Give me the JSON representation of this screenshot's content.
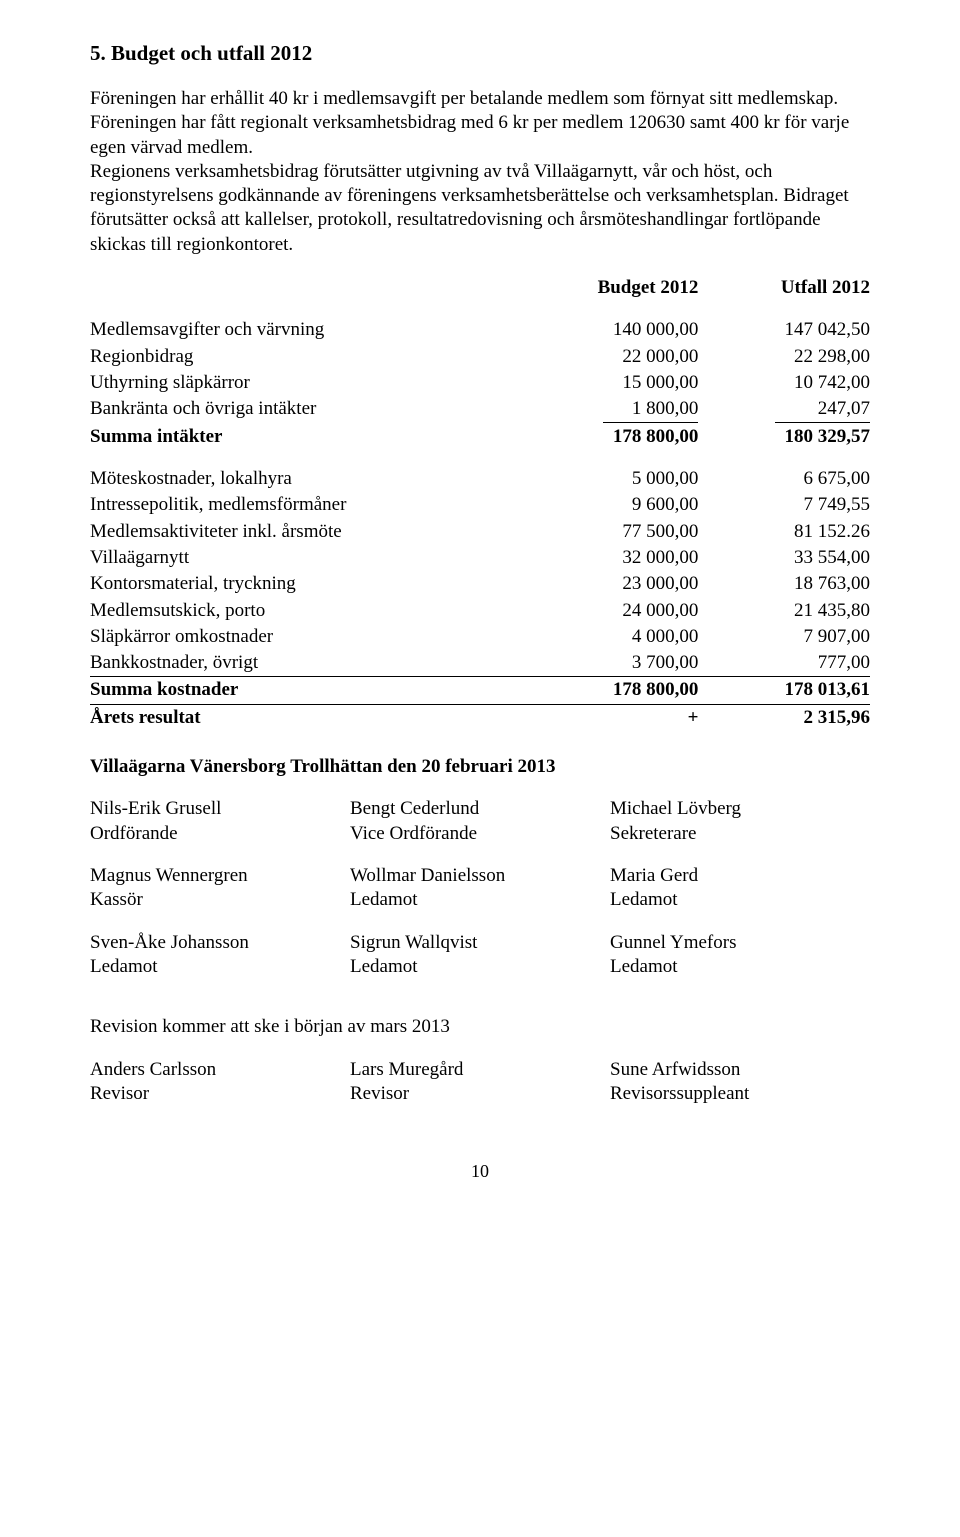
{
  "heading": "5. Budget och utfall 2012",
  "para1": "Föreningen har erhållit 40 kr i medlemsavgift per betalande medlem som förnyat sitt medlemskap.",
  "para2": "Föreningen har fått regionalt verksamhetsbidrag med 6 kr per medlem 120630 samt 400 kr för varje egen värvad medlem.",
  "para3": "Regionens verksamhetsbidrag förutsätter utgivning av två Villaägarnytt, vår och höst, och regionstyrelsens godkännande av föreningens verksamhetsberättelse och verksamhetsplan. Bidraget förutsätter också att kallelser, protokoll, resultatredovisning och årsmöteshandlingar fortlöpande skickas till regionkontoret.",
  "col_headers": {
    "budget": "Budget 2012",
    "utfall": "Utfall 2012"
  },
  "income": [
    {
      "label": "Medlemsavgifter och värvning",
      "budget": "140 000,00",
      "utfall": "147 042,50"
    },
    {
      "label": "Regionbidrag",
      "budget": "22 000,00",
      "utfall": "22 298,00"
    },
    {
      "label": "Uthyrning släpkärror",
      "budget": "15 000,00",
      "utfall": "10 742,00"
    },
    {
      "label": "Bankränta och övriga intäkter",
      "budget": "1 800,00",
      "utfall": "247,07",
      "underline": true
    }
  ],
  "income_sum": {
    "label": "Summa intäkter",
    "budget": "178 800,00",
    "utfall": "180 329,57"
  },
  "expense": [
    {
      "label": "Möteskostnader, lokalhyra",
      "budget": "5 000,00",
      "utfall": "6 675,00"
    },
    {
      "label": "Intressepolitik, medlemsförmåner",
      "budget": "9 600,00",
      "utfall": "7 749,55"
    },
    {
      "label": "Medlemsaktiviteter inkl. årsmöte",
      "budget": "77 500,00",
      "utfall": "81 152.26"
    },
    {
      "label": "Villaägarnytt",
      "budget": "32 000,00",
      "utfall": "33 554,00"
    },
    {
      "label": "Kontorsmaterial, tryckning",
      "budget": "23 000,00",
      "utfall": "18 763,00"
    },
    {
      "label": "Medlemsutskick,  porto",
      "budget": "24 000,00",
      "utfall": "21 435,80"
    },
    {
      "label": "Släpkärror omkostnader",
      "budget": "4 000,00",
      "utfall": "7 907,00"
    },
    {
      "label": "Bankkostnader,  övrigt",
      "budget": "3 700,00",
      "utfall": "777,00"
    }
  ],
  "expense_sum": {
    "label": "Summa kostnader",
    "budget": "178 800,00",
    "utfall": "178 013,61"
  },
  "result": {
    "label": "Årets resultat",
    "sign": "+",
    "value": "2 315,96"
  },
  "sig_line": "Villaägarna Vänersborg Trollhättan den 20 februari  2013",
  "board": [
    [
      {
        "name": "Nils-Erik Grusell",
        "role": "Ordförande"
      },
      {
        "name": "Bengt Cederlund",
        "role": "Vice Ordförande"
      },
      {
        "name": "Michael Lövberg",
        "role": "Sekreterare"
      }
    ],
    [
      {
        "name": "Magnus Wennergren",
        "role": "Kassör"
      },
      {
        "name": "Wollmar Danielsson",
        "role": "Ledamot"
      },
      {
        "name": "Maria Gerd",
        "role": "Ledamot"
      }
    ],
    [
      {
        "name": "Sven-Åke Johansson",
        "role": "Ledamot"
      },
      {
        "name": "Sigrun Wallqvist",
        "role": "Ledamot"
      },
      {
        "name": "Gunnel Ymefors",
        "role": "Ledamot"
      }
    ]
  ],
  "rev_note": "Revision kommer att ske i  början av mars 2013",
  "auditors": [
    {
      "name": "Anders Carlsson",
      "role": "Revisor"
    },
    {
      "name": "Lars Muregård",
      "role": "Revisor"
    },
    {
      "name": "Sune Arfwidsson",
      "role": "Revisorssuppleant"
    }
  ],
  "page_no": "10"
}
